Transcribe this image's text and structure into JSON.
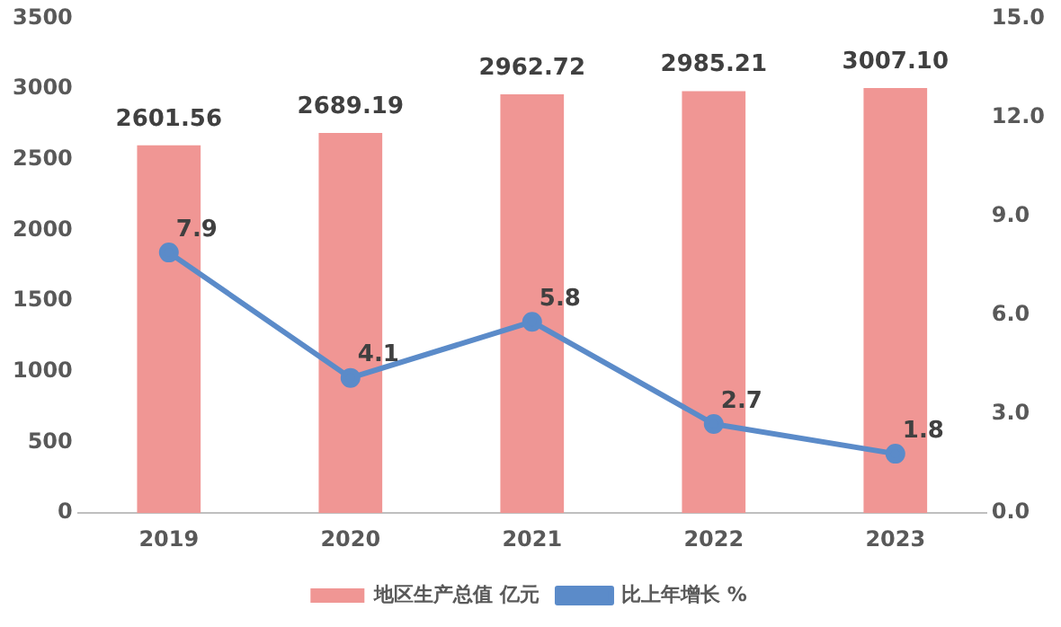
{
  "chart_data": {
    "type": "bar",
    "categories": [
      "2019",
      "2020",
      "2021",
      "2022",
      "2023"
    ],
    "series": [
      {
        "name": "地区生产总值 亿元",
        "color": "#f09694",
        "values": [
          2601.56,
          2689.19,
          2962.72,
          2985.21,
          3007.1
        ],
        "value_labels": [
          "2601.56",
          "2689.19",
          "2962.72",
          "2985.21",
          "3007.10"
        ]
      },
      {
        "name": "比上年增长 %",
        "type": "line",
        "axis": "y2",
        "color": "#5b8bc9",
        "values": [
          7.9,
          4.1,
          5.8,
          2.7,
          1.8
        ],
        "value_labels": [
          "7.9",
          "4.1",
          "5.8",
          "2.7",
          "1.8"
        ]
      }
    ],
    "ylim": [
      0,
      3500
    ],
    "yticks": [
      0,
      500,
      1000,
      1500,
      2000,
      2500,
      3000,
      3500
    ],
    "y2lim": [
      0,
      15
    ],
    "y2ticks": [
      {
        "value": 0,
        "label": "0.0"
      },
      {
        "value": 3,
        "label": "3.0"
      },
      {
        "value": 6,
        "label": "6.0"
      },
      {
        "value": 9,
        "label": "9.0"
      },
      {
        "value": 12,
        "label": "12.0"
      },
      {
        "value": 15,
        "label": "15.0"
      }
    ],
    "grid": false,
    "legend": "bottom",
    "marker": "circle"
  }
}
